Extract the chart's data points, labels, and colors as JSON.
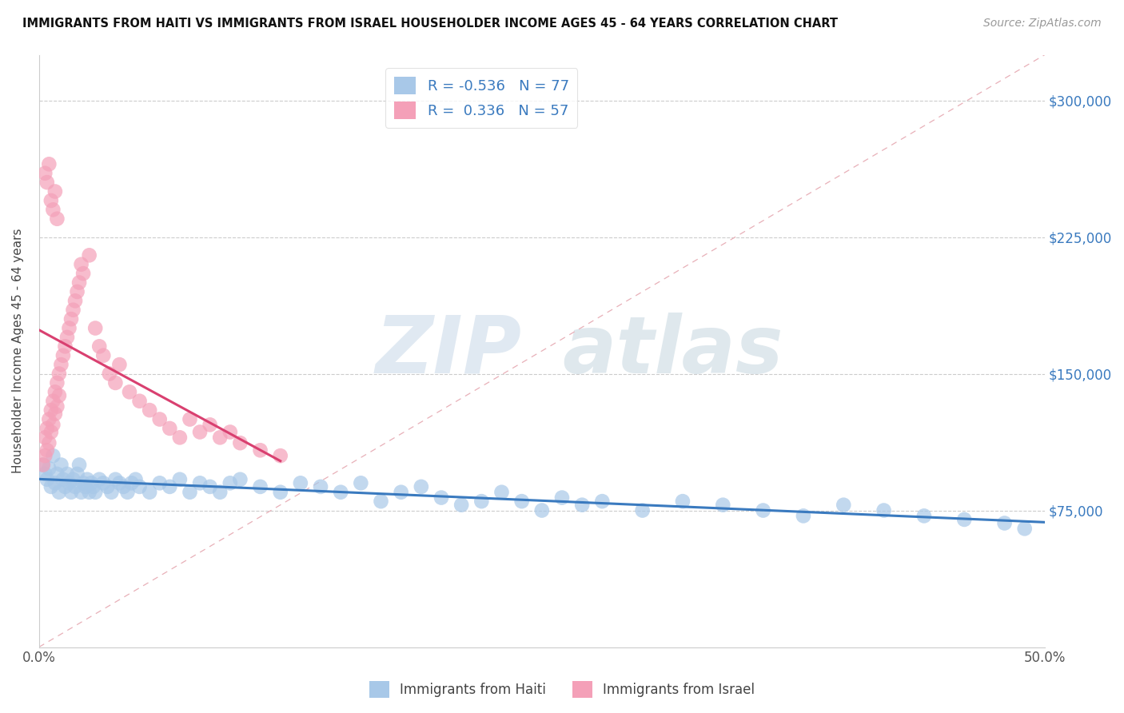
{
  "title": "IMMIGRANTS FROM HAITI VS IMMIGRANTS FROM ISRAEL HOUSEHOLDER INCOME AGES 45 - 64 YEARS CORRELATION CHART",
  "source": "Source: ZipAtlas.com",
  "ylabel": "Householder Income Ages 45 - 64 years",
  "xlim": [
    0.0,
    0.5
  ],
  "ylim": [
    0,
    325000
  ],
  "ytick_positions": [
    0,
    75000,
    150000,
    225000,
    300000
  ],
  "ytick_labels": [
    "",
    "$75,000",
    "$150,000",
    "$225,000",
    "$300,000"
  ],
  "haiti_color": "#a8c8e8",
  "israel_color": "#f4a0b8",
  "haiti_line_color": "#3a7abf",
  "israel_line_color": "#d94070",
  "diag_line_color": "#e8b0b8",
  "legend_r_haiti": "-0.536",
  "legend_n_haiti": "77",
  "legend_r_israel": "0.336",
  "legend_n_israel": "57",
  "watermark_zip": "ZIP",
  "watermark_atlas": "atlas",
  "haiti_scatter_x": [
    0.002,
    0.003,
    0.004,
    0.005,
    0.006,
    0.007,
    0.008,
    0.009,
    0.01,
    0.011,
    0.012,
    0.013,
    0.014,
    0.015,
    0.016,
    0.017,
    0.018,
    0.019,
    0.02,
    0.021,
    0.022,
    0.023,
    0.024,
    0.025,
    0.026,
    0.027,
    0.028,
    0.03,
    0.032,
    0.034,
    0.036,
    0.038,
    0.04,
    0.042,
    0.044,
    0.046,
    0.048,
    0.05,
    0.055,
    0.06,
    0.065,
    0.07,
    0.075,
    0.08,
    0.085,
    0.09,
    0.095,
    0.1,
    0.11,
    0.12,
    0.13,
    0.14,
    0.15,
    0.16,
    0.17,
    0.18,
    0.19,
    0.2,
    0.21,
    0.22,
    0.23,
    0.24,
    0.25,
    0.26,
    0.27,
    0.28,
    0.3,
    0.32,
    0.34,
    0.36,
    0.38,
    0.4,
    0.42,
    0.44,
    0.46,
    0.48,
    0.49
  ],
  "haiti_scatter_y": [
    100000,
    95000,
    92000,
    98000,
    88000,
    105000,
    90000,
    95000,
    85000,
    100000,
    92000,
    88000,
    95000,
    90000,
    85000,
    92000,
    88000,
    95000,
    100000,
    85000,
    90000,
    88000,
    92000,
    85000,
    90000,
    88000,
    85000,
    92000,
    90000,
    88000,
    85000,
    92000,
    90000,
    88000,
    85000,
    90000,
    92000,
    88000,
    85000,
    90000,
    88000,
    92000,
    85000,
    90000,
    88000,
    85000,
    90000,
    92000,
    88000,
    85000,
    90000,
    88000,
    85000,
    90000,
    80000,
    85000,
    88000,
    82000,
    78000,
    80000,
    85000,
    80000,
    75000,
    82000,
    78000,
    80000,
    75000,
    80000,
    78000,
    75000,
    72000,
    78000,
    75000,
    72000,
    70000,
    68000,
    65000
  ],
  "israel_scatter_x": [
    0.002,
    0.003,
    0.003,
    0.004,
    0.004,
    0.005,
    0.005,
    0.006,
    0.006,
    0.007,
    0.007,
    0.008,
    0.008,
    0.009,
    0.009,
    0.01,
    0.01,
    0.011,
    0.012,
    0.013,
    0.014,
    0.015,
    0.016,
    0.017,
    0.018,
    0.019,
    0.02,
    0.021,
    0.022,
    0.025,
    0.028,
    0.03,
    0.032,
    0.035,
    0.038,
    0.04,
    0.045,
    0.05,
    0.055,
    0.06,
    0.065,
    0.07,
    0.075,
    0.08,
    0.085,
    0.09,
    0.095,
    0.1,
    0.11,
    0.12,
    0.003,
    0.004,
    0.005,
    0.006,
    0.007,
    0.008,
    0.009
  ],
  "israel_scatter_y": [
    100000,
    105000,
    115000,
    108000,
    120000,
    112000,
    125000,
    118000,
    130000,
    122000,
    135000,
    128000,
    140000,
    132000,
    145000,
    138000,
    150000,
    155000,
    160000,
    165000,
    170000,
    175000,
    180000,
    185000,
    190000,
    195000,
    200000,
    210000,
    205000,
    215000,
    175000,
    165000,
    160000,
    150000,
    145000,
    155000,
    140000,
    135000,
    130000,
    125000,
    120000,
    115000,
    125000,
    118000,
    122000,
    115000,
    118000,
    112000,
    108000,
    105000,
    260000,
    255000,
    265000,
    245000,
    240000,
    250000,
    235000
  ]
}
